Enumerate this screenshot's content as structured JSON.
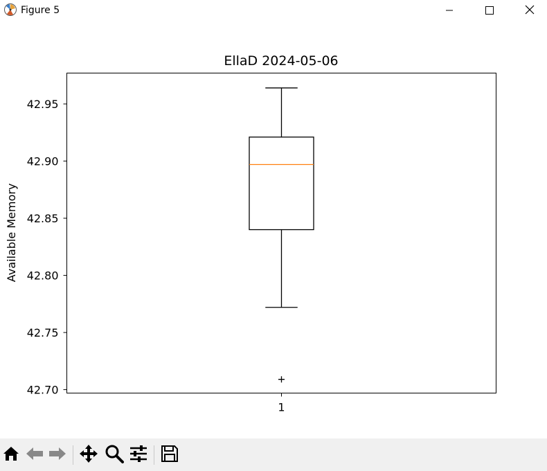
{
  "window": {
    "title": "Figure 5",
    "icons": [
      "matplotlib-icon",
      "minimize-icon",
      "maximize-icon",
      "close-icon"
    ]
  },
  "toolbar": {
    "icons": [
      "home-icon",
      "back-icon",
      "forward-icon",
      "pan-icon",
      "zoom-icon",
      "configure-subplots-icon",
      "save-icon"
    ]
  },
  "chart_data": {
    "type": "box",
    "title": "EllaD 2024-05-06",
    "xlabel": "",
    "ylabel": "Available Memory",
    "categories": [
      "1"
    ],
    "ylim": [
      42.697,
      42.977
    ],
    "yticks": [
      "42.70",
      "42.75",
      "42.80",
      "42.85",
      "42.90",
      "42.95"
    ],
    "boxes": [
      {
        "category": "1",
        "whisker_low": 42.772,
        "q1": 42.84,
        "median": 42.897,
        "q3": 42.921,
        "whisker_high": 42.964,
        "outliers": [
          42.709
        ]
      }
    ],
    "colors": {
      "box": "#000000",
      "median": "#ff7f0e"
    },
    "grid": false
  }
}
